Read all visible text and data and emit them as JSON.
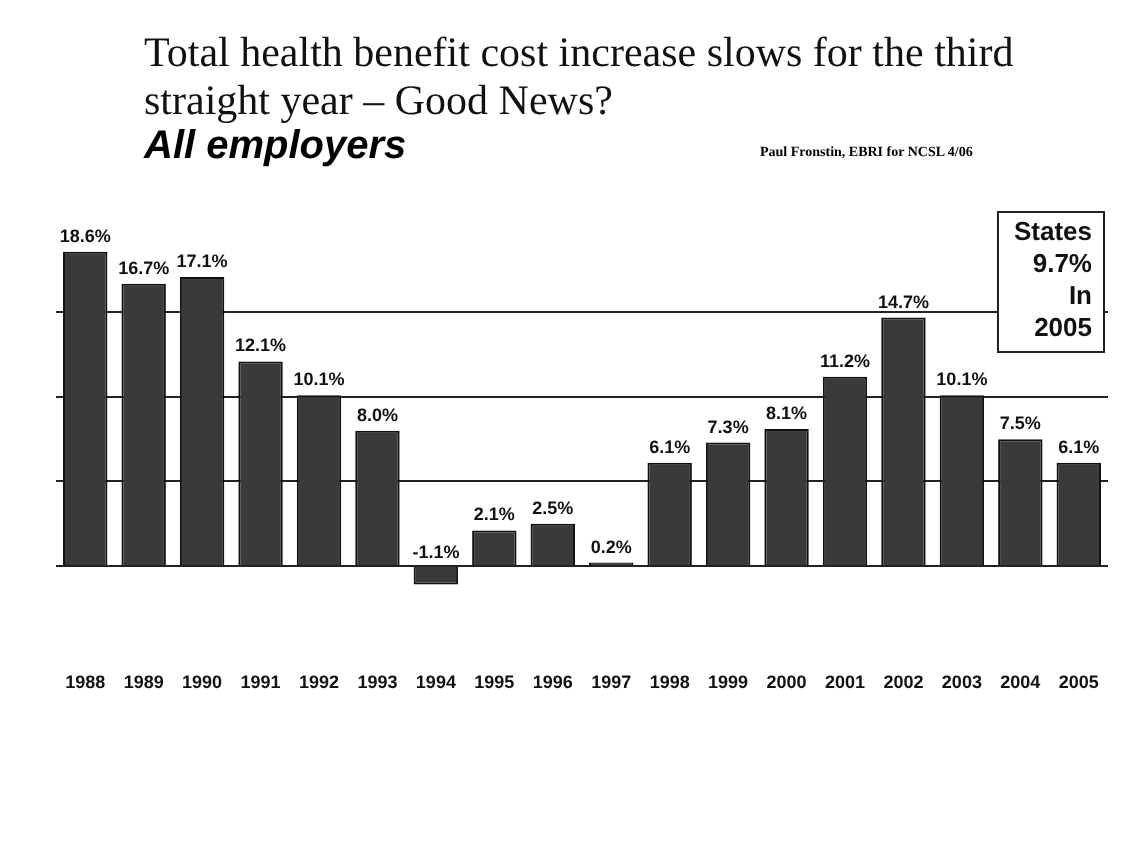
{
  "chart_data": {
    "type": "bar",
    "title": "Total health benefit cost increase slows for the third straight year – Good News?",
    "subtitle": "All employers",
    "annotations": [
      "Paul Fronstin, EBRI for NCSL 4/06",
      "States\n9.7%\nIn\n2005"
    ],
    "categories": [
      "1988",
      "1989",
      "1990",
      "1991",
      "1992",
      "1993",
      "1994",
      "1995",
      "1996",
      "1997",
      "1998",
      "1999",
      "2000",
      "2001",
      "2002",
      "2003",
      "2004",
      "2005"
    ],
    "values": [
      18.6,
      16.7,
      17.1,
      12.1,
      10.1,
      8.0,
      -1.1,
      2.1,
      2.5,
      0.2,
      6.1,
      7.3,
      8.1,
      11.2,
      14.7,
      10.1,
      7.5,
      6.1
    ],
    "value_labels": [
      "18.6%",
      "16.7%",
      "17.1%",
      "12.1%",
      "10.1%",
      "8.0%",
      "-1.1%",
      "2.1%",
      "2.5%",
      "0.2%",
      "6.1%",
      "7.3%",
      "8.1%",
      "11.2%",
      "14.7%",
      "10.1%",
      "7.5%",
      "6.1%"
    ],
    "color": "#3a3a3a",
    "yticks": [
      {
        "value": 0,
        "label": null
      },
      {
        "value": 5,
        "label": null
      },
      {
        "value": 10,
        "label": null
      },
      {
        "value": 15,
        "label": null
      }
    ],
    "grid": "y",
    "tick_labels": "x",
    "legend": false
  }
}
